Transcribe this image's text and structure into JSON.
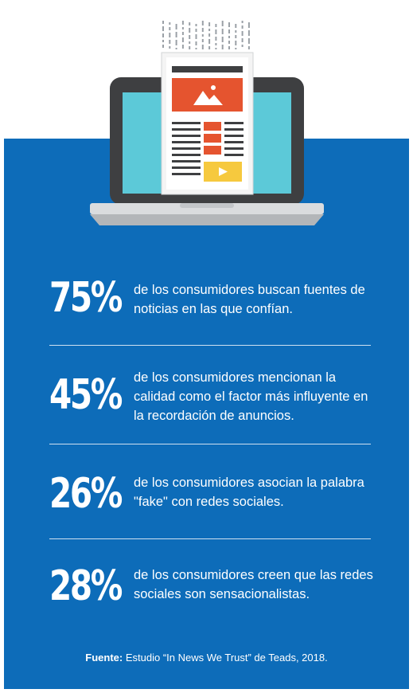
{
  "stats": [
    {
      "percent": "75%",
      "text": "de los consumidores buscan fuentes de noticias en las que confían."
    },
    {
      "percent": "45%",
      "text": "de los consumidores mencionan la calidad como el factor más influyente en la recordación de anuncios."
    },
    {
      "percent": "26%",
      "text": "de los consumidores asocian la palabra \"fake\" con redes sociales."
    },
    {
      "percent": "28%",
      "text": "de los consumidores creen que las redes sociales son sensacionalistas."
    }
  ],
  "source": {
    "label": "Fuente:",
    "text": " Estudio “In News We Trust” de Teads, 2018."
  },
  "colors": {
    "panel_blue": "#0d6cb9",
    "screen_cyan": "#5cc9d8",
    "laptop_dark": "#3e3f41",
    "headline_orange": "#e5542f",
    "video_yellow": "#f6c93e"
  },
  "icons": [
    "laptop-icon",
    "newspaper-icon",
    "image-icon",
    "play-icon"
  ]
}
